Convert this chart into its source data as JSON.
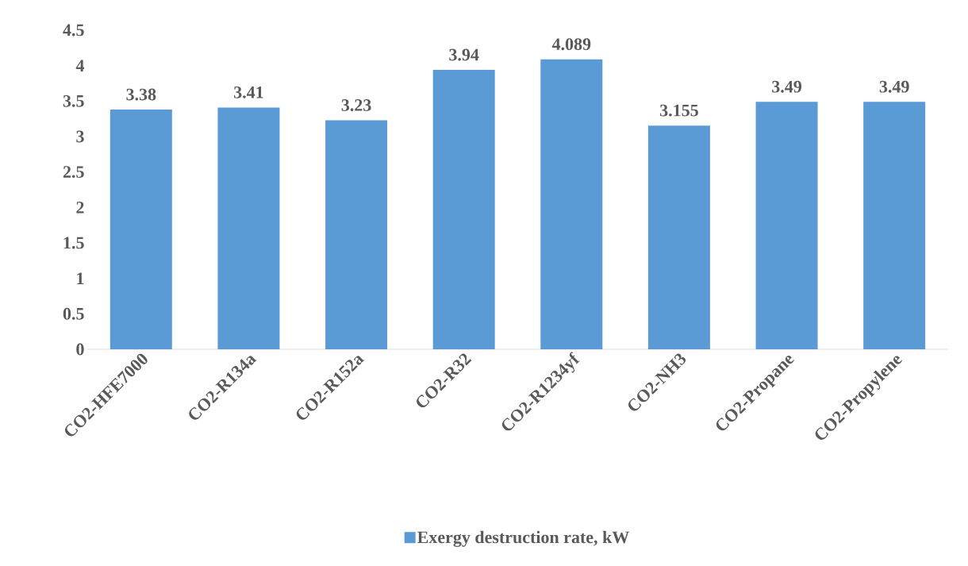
{
  "chart_data": {
    "type": "bar",
    "categories": [
      "CO2-HFE7000",
      "CO2-R134a",
      "CO2-R152a",
      "CO2-R32",
      "CO2-R1234yf",
      "CO2-NH3",
      "CO2-Propane",
      "CO2-Propylene"
    ],
    "series": [
      {
        "name": "Exergy destruction rate, kW",
        "color": "#5b9bd5",
        "values": [
          3.38,
          3.41,
          3.23,
          3.94,
          4.089,
          3.155,
          3.49,
          3.49
        ]
      }
    ],
    "ylim": [
      0,
      4.5
    ],
    "yticks": [
      0,
      0.5,
      1,
      1.5,
      2,
      2.5,
      3,
      3.5,
      4,
      4.5
    ],
    "data_labels": true,
    "legend": "bottom",
    "grid": false
  }
}
